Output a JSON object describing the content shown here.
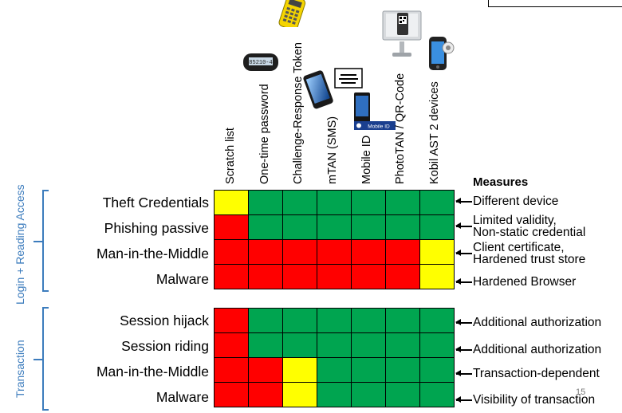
{
  "colors": {
    "green": "#00a550",
    "red": "#ff0000",
    "yellow": "#ffff00",
    "accent_blue": "#3c7cbd"
  },
  "columns": [
    {
      "label": "Scratch list",
      "icon": "none"
    },
    {
      "label": "One-time password",
      "icon": "otp-token-icon"
    },
    {
      "label": "Challenge-Response Token",
      "icon": "challenge-response-token-icon"
    },
    {
      "label": "mTAN (SMS)",
      "icon": "smartphone-sms-icon"
    },
    {
      "label": "Mobile ID",
      "icon": "mobile-id-phone-icon"
    },
    {
      "label": "PhotoTAN / QR-Code",
      "icon": "phototan-device-icon"
    },
    {
      "label": "Kobil AST 2 devices",
      "icon": "kobil-device-icon"
    }
  ],
  "device_text": {
    "otp_token_display": "85210-4",
    "mobile_id_badge": "Mobile ID"
  },
  "groups": [
    {
      "label": "Login + Reading Access"
    },
    {
      "label": "Transaction"
    }
  ],
  "rows": [
    {
      "label": "Theft Credentials",
      "cells": [
        "Y",
        "G",
        "G",
        "G",
        "G",
        "G",
        "G"
      ]
    },
    {
      "label": "Phishing passive",
      "cells": [
        "R",
        "G",
        "G",
        "G",
        "G",
        "G",
        "G"
      ]
    },
    {
      "label": "Man-in-the-Middle",
      "cells": [
        "R",
        "R",
        "R",
        "R",
        "R",
        "R",
        "Y"
      ]
    },
    {
      "label": "Malware",
      "cells": [
        "R",
        "R",
        "R",
        "R",
        "R",
        "R",
        "Y"
      ]
    },
    {
      "label": "Session hijack",
      "cells": [
        "R",
        "G",
        "G",
        "G",
        "G",
        "G",
        "G"
      ]
    },
    {
      "label": "Session riding",
      "cells": [
        "R",
        "G",
        "G",
        "G",
        "G",
        "G",
        "G"
      ]
    },
    {
      "label": "Man-in-the-Middle",
      "cells": [
        "R",
        "R",
        "Y",
        "G",
        "G",
        "G",
        "G"
      ]
    },
    {
      "label": "Malware",
      "cells": [
        "R",
        "R",
        "Y",
        "G",
        "G",
        "G",
        "G"
      ]
    }
  ],
  "measures": {
    "title": "Measures",
    "items": [
      {
        "line1": "Different device",
        "line2": ""
      },
      {
        "line1": "Limited validity,",
        "line2": "Non-static credential"
      },
      {
        "line1": "Client certificate,",
        "line2": "Hardened trust store"
      },
      {
        "line1": "Hardened Browser",
        "line2": ""
      },
      {
        "line1": "Additional authorization",
        "line2": ""
      },
      {
        "line1": "Additional authorization",
        "line2": ""
      },
      {
        "line1": "Transaction-dependent",
        "line2": ""
      },
      {
        "line1": "Visibility of transaction",
        "line2": ""
      }
    ]
  },
  "page_number": "15"
}
